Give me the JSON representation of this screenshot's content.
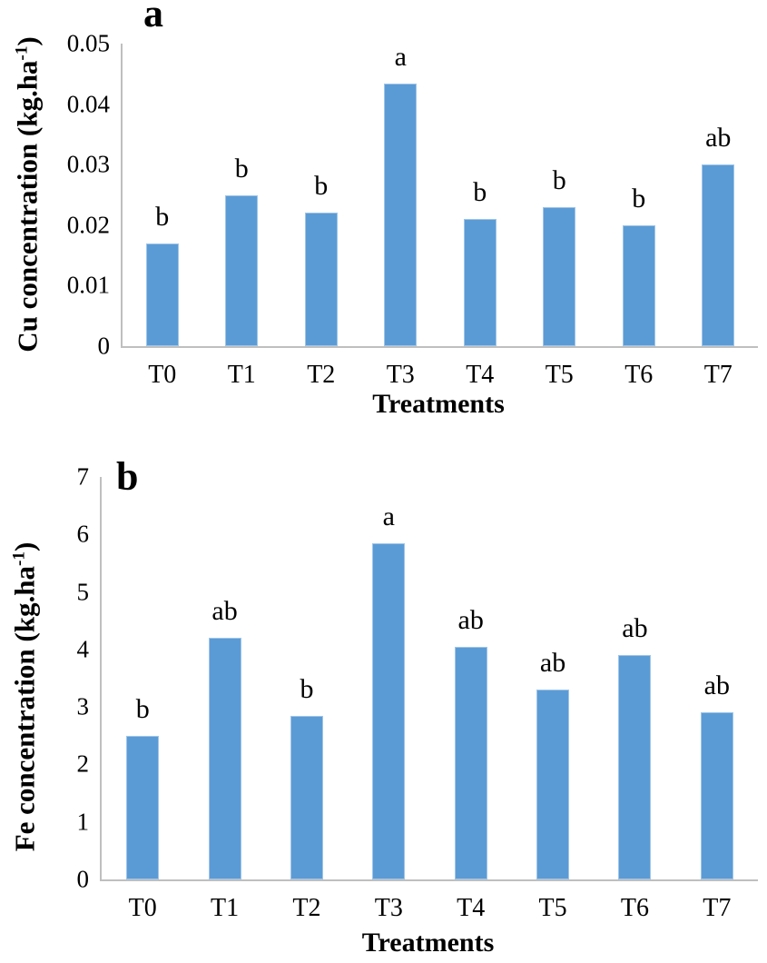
{
  "styles": {
    "bar_fill": "#5B9BD5",
    "bar_border": "#9FC5E8",
    "axis_line": "#BFBFBF",
    "text_color": "#000000",
    "background": "#FFFFFF"
  },
  "chart_data": [
    {
      "type": "bar",
      "panel_label": "a",
      "title": "",
      "xlabel": "Treatments",
      "ylabel": "Cu concentration (kg.ha-1)",
      "ylabel_display": {
        "pre": "Cu concentration (kg.ha",
        "sup": "-1",
        "post": ")"
      },
      "categories": [
        "T0",
        "T1",
        "T2",
        "T3",
        "T4",
        "T5",
        "T6",
        "T7"
      ],
      "values": [
        0.017,
        0.025,
        0.022,
        0.047,
        0.021,
        0.023,
        0.02,
        0.03
      ],
      "significance_letters": [
        "b",
        "b",
        "b",
        "a",
        "b",
        "b",
        "b",
        "ab"
      ],
      "ylim": [
        0,
        0.05
      ],
      "ytick_values": [
        0,
        0.01,
        0.02,
        0.03,
        0.04,
        0.05
      ],
      "ytick_labels": [
        "0",
        "0.01",
        "0.02",
        "0.03",
        "0.04",
        "0.05"
      ],
      "grid": false,
      "legend": null,
      "bar_color": "#5B9BD5"
    },
    {
      "type": "bar",
      "panel_label": "b",
      "title": "",
      "xlabel": "Treatments",
      "ylabel": "Fe concentration (kg.ha-1)",
      "ylabel_display": {
        "pre": "Fe concentration (kg.ha",
        "sup": "-1",
        "post": ")"
      },
      "categories": [
        "T0",
        "T1",
        "T2",
        "T3",
        "T4",
        "T5",
        "T6",
        "T7"
      ],
      "values": [
        2.5,
        4.2,
        2.85,
        5.85,
        4.05,
        3.3,
        3.9,
        2.9
      ],
      "significance_letters": [
        "b",
        "ab",
        "b",
        "a",
        "ab",
        "ab",
        "ab",
        "ab"
      ],
      "ylim": [
        0,
        7
      ],
      "ytick_values": [
        0,
        1,
        2,
        3,
        4,
        5,
        6,
        7
      ],
      "ytick_labels": [
        "0",
        "1",
        "2",
        "3",
        "4",
        "5",
        "6",
        "7"
      ],
      "grid": false,
      "legend": null,
      "bar_color": "#5B9BD5"
    }
  ]
}
